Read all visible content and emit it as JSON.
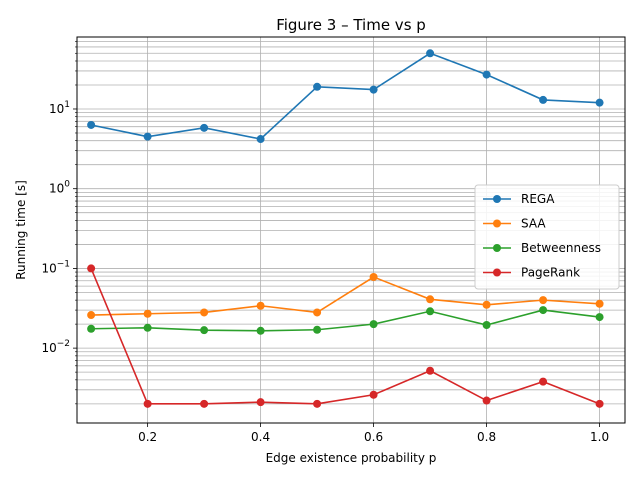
{
  "chart_data": {
    "type": "line",
    "title": "Figure 3 – Time vs p",
    "xlabel": "Edge existence probability p",
    "ylabel": "Running time [s]",
    "xlim": [
      0.075,
      1.045
    ],
    "ylim": [
      0.00115,
      80
    ],
    "yscale": "log",
    "grid": true,
    "legend_position": "center-right",
    "x_ticks": [
      0.2,
      0.4,
      0.6,
      0.8,
      1.0
    ],
    "x_tick_labels": [
      "0.2",
      "0.4",
      "0.6",
      "0.8",
      "1.0"
    ],
    "y_ticks": [
      0.01,
      0.1,
      1,
      10
    ],
    "y_tick_labels": [
      {
        "base": "10",
        "exp": "−2"
      },
      {
        "base": "10",
        "exp": "−1"
      },
      {
        "base": "10",
        "exp": "0"
      },
      {
        "base": "10",
        "exp": "1"
      }
    ],
    "x": [
      0.1,
      0.2,
      0.3,
      0.4,
      0.5,
      0.6,
      0.7,
      0.8,
      0.9,
      1.0
    ],
    "series": [
      {
        "name": "REGA",
        "color": "#1f77b4",
        "values": [
          6.3,
          4.5,
          5.8,
          4.2,
          19,
          17.5,
          50,
          27,
          13,
          12
        ]
      },
      {
        "name": "SAA",
        "color": "#ff7f0e",
        "values": [
          0.026,
          0.027,
          0.028,
          0.034,
          0.028,
          0.078,
          0.041,
          0.035,
          0.04,
          0.036
        ]
      },
      {
        "name": "Betweenness",
        "color": "#2ca02c",
        "values": [
          0.0175,
          0.018,
          0.0168,
          0.0165,
          0.017,
          0.02,
          0.029,
          0.0195,
          0.03,
          0.0245
        ]
      },
      {
        "name": "PageRank",
        "color": "#d62728",
        "values": [
          0.1,
          0.002,
          0.002,
          0.0021,
          0.002,
          0.0026,
          0.0052,
          0.0022,
          0.0038,
          0.002
        ]
      }
    ]
  }
}
